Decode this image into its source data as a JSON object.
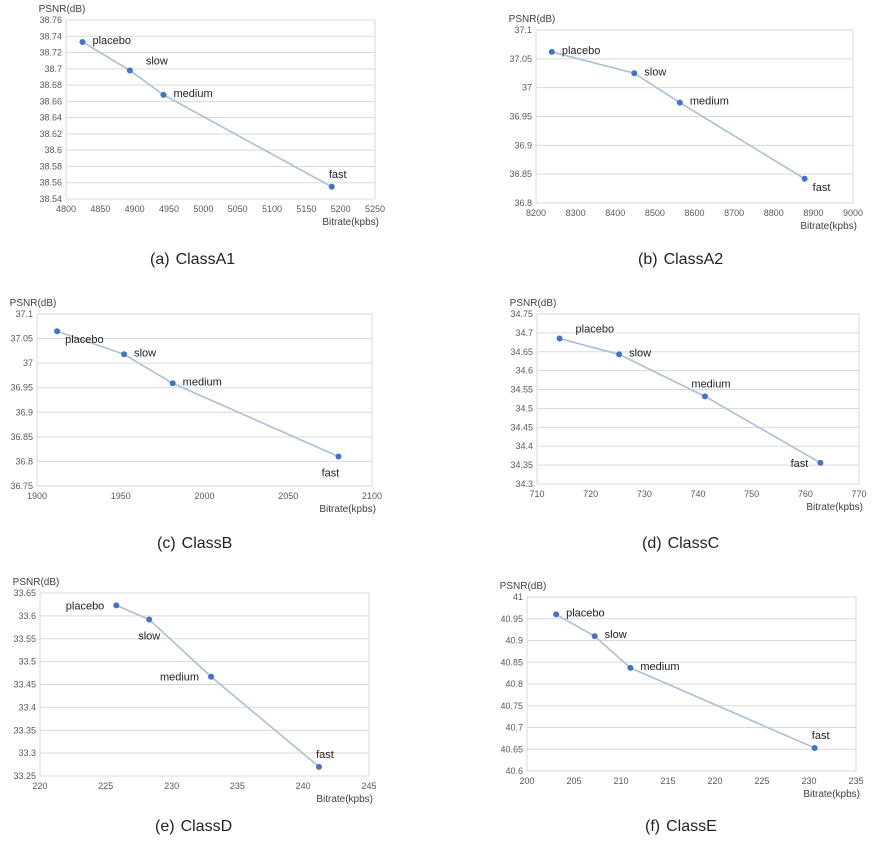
{
  "panels": [
    {
      "caption_letter": "(a)",
      "caption_name": "ClassA1"
    },
    {
      "caption_letter": "(b)",
      "caption_name": "ClassA2"
    },
    {
      "caption_letter": "(c)",
      "caption_name": "ClassB"
    },
    {
      "caption_letter": "(d)",
      "caption_name": "ClassC"
    },
    {
      "caption_letter": "(e)",
      "caption_name": "ClassD"
    },
    {
      "caption_letter": "(f)",
      "caption_name": "ClassE"
    }
  ],
  "chart_data": [
    {
      "type": "scatter",
      "title": "",
      "ylabel": "PSNR(dB)",
      "xlabel": "Bitrate(kpbs)",
      "xlim": [
        4800,
        5250
      ],
      "ylim": [
        38.54,
        38.76
      ],
      "xticks": [
        "4800",
        "4850",
        "4900",
        "4950",
        "5000",
        "5050",
        "5100",
        "5150",
        "5200",
        "5250"
      ],
      "yticks": [
        "38.54",
        "38.56",
        "38.58",
        "38.6",
        "38.62",
        "38.64",
        "38.66",
        "38.68",
        "38.7",
        "38.72",
        "38.74",
        "38.76"
      ],
      "points": [
        {
          "label": "placebo",
          "x": 4824,
          "y": 38.733,
          "pos": "right"
        },
        {
          "label": "slow",
          "x": 4893,
          "y": 38.698,
          "pos": "above-right"
        },
        {
          "label": "medium",
          "x": 4942,
          "y": 38.668,
          "pos": "right"
        },
        {
          "label": "fast",
          "x": 5187,
          "y": 38.555,
          "pos": "above"
        }
      ]
    },
    {
      "type": "scatter",
      "title": "",
      "ylabel": "PSNR(dB)",
      "xlabel": "Bitrate(kpbs)",
      "xlim": [
        8200,
        9000
      ],
      "ylim": [
        36.8,
        37.1
      ],
      "xticks": [
        "8200",
        "8300",
        "8400",
        "8500",
        "8600",
        "8700",
        "8800",
        "8900",
        "9000"
      ],
      "yticks": [
        "36.8",
        "36.85",
        "36.9",
        "36.95",
        "37",
        "37.05",
        "37.1"
      ],
      "points": [
        {
          "label": "placebo",
          "x": 8240,
          "y": 37.062,
          "pos": "right"
        },
        {
          "label": "slow",
          "x": 8448,
          "y": 37.025,
          "pos": "right"
        },
        {
          "label": "medium",
          "x": 8563,
          "y": 36.974,
          "pos": "right"
        },
        {
          "label": "fast",
          "x": 8878,
          "y": 36.842,
          "pos": "below-right"
        }
      ]
    },
    {
      "type": "scatter",
      "title": "",
      "ylabel": "PSNR(dB)",
      "xlabel": "Bitrate(kpbs)",
      "xlim": [
        1900,
        2100
      ],
      "ylim": [
        36.75,
        37.1
      ],
      "xticks": [
        "1900",
        "1950",
        "2000",
        "2050",
        "2100"
      ],
      "yticks": [
        "36.75",
        "36.8",
        "36.85",
        "36.9",
        "36.95",
        "37",
        "37.05",
        "37.1"
      ],
      "points": [
        {
          "label": "placebo",
          "x": 1912,
          "y": 37.065,
          "pos": "below-right"
        },
        {
          "label": "slow",
          "x": 1952,
          "y": 37.018,
          "pos": "right"
        },
        {
          "label": "medium",
          "x": 1981,
          "y": 36.959,
          "pos": "right"
        },
        {
          "label": "fast",
          "x": 2080,
          "y": 36.81,
          "pos": "below-left"
        }
      ]
    },
    {
      "type": "scatter",
      "title": "",
      "ylabel": "PSNR(dB)",
      "xlabel": "Bitrate(kpbs)",
      "xlim": [
        710,
        770
      ],
      "ylim": [
        34.3,
        34.75
      ],
      "xticks": [
        "710",
        "720",
        "730",
        "740",
        "750",
        "760",
        "770"
      ],
      "yticks": [
        "34.3",
        "34.35",
        "34.4",
        "34.45",
        "34.5",
        "34.55",
        "34.6",
        "34.65",
        "34.7",
        "34.75"
      ],
      "points": [
        {
          "label": "placebo",
          "x": 714.2,
          "y": 34.685,
          "pos": "above-right"
        },
        {
          "label": "slow",
          "x": 725.3,
          "y": 34.643,
          "pos": "right"
        },
        {
          "label": "medium",
          "x": 741.3,
          "y": 34.532,
          "pos": "above"
        },
        {
          "label": "fast",
          "x": 762.8,
          "y": 34.356,
          "pos": "left"
        }
      ]
    },
    {
      "type": "scatter",
      "title": "",
      "ylabel": "PSNR(dB)",
      "xlabel": "Bitrate(kpbs)",
      "xlim": [
        220,
        245
      ],
      "ylim": [
        33.25,
        33.65
      ],
      "xticks": [
        "220",
        "225",
        "230",
        "235",
        "240",
        "245"
      ],
      "yticks": [
        "33.25",
        "33.3",
        "33.35",
        "33.4",
        "33.45",
        "33.5",
        "33.55",
        "33.6",
        "33.65"
      ],
      "points": [
        {
          "label": "placebo",
          "x": 225.8,
          "y": 33.623,
          "pos": "left"
        },
        {
          "label": "slow",
          "x": 228.3,
          "y": 33.592,
          "pos": "below"
        },
        {
          "label": "medium",
          "x": 233,
          "y": 33.467,
          "pos": "left"
        },
        {
          "label": "fast",
          "x": 241.2,
          "y": 33.27,
          "pos": "above"
        }
      ]
    },
    {
      "type": "scatter",
      "title": "",
      "ylabel": "PSNR(dB)",
      "xlabel": "Bitrate(kpbs)",
      "xlim": [
        200,
        235
      ],
      "ylim": [
        40.6,
        41
      ],
      "xticks": [
        "200",
        "205",
        "210",
        "215",
        "220",
        "225",
        "230",
        "235"
      ],
      "yticks": [
        "40.6",
        "40.65",
        "40.7",
        "40.75",
        "40.8",
        "40.85",
        "40.9",
        "40.95",
        "41"
      ],
      "points": [
        {
          "label": "placebo",
          "x": 203.1,
          "y": 40.96,
          "pos": "right"
        },
        {
          "label": "slow",
          "x": 207.2,
          "y": 40.91,
          "pos": "right"
        },
        {
          "label": "medium",
          "x": 211,
          "y": 40.837,
          "pos": "right"
        },
        {
          "label": "fast",
          "x": 230.6,
          "y": 40.653,
          "pos": "above"
        }
      ]
    }
  ]
}
